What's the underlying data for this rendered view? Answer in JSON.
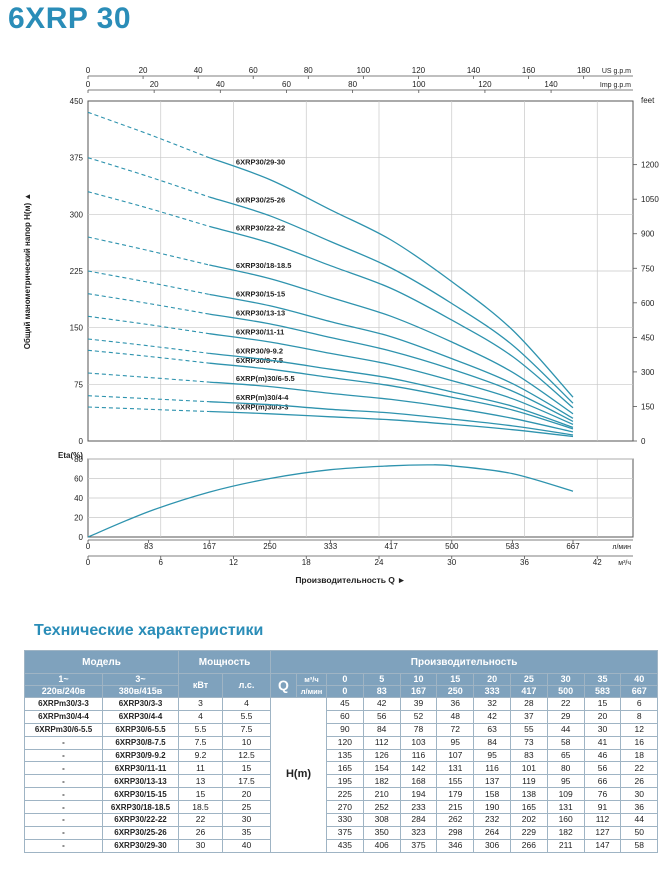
{
  "page_title": "6XRP 30",
  "section_title": "Технические характеристики",
  "colors": {
    "brand": "#2a8db8",
    "curve": "#2e93ae",
    "header": "#7fa2bd",
    "grid": "#c8c8c8"
  },
  "chart_data": [
    {
      "type": "line",
      "title": "",
      "ylabel": "Общий манометрический напор H(м)",
      "ylim": [
        0,
        450
      ],
      "yticks": [
        0,
        75,
        150,
        225,
        300,
        375,
        450
      ],
      "right_axis": {
        "label": "feet",
        "ticks": [
          0,
          150,
          300,
          450,
          600,
          750,
          900,
          1050,
          1200
        ]
      },
      "top_axis_us": {
        "label": "US g.p.m",
        "ticks": [
          0,
          20,
          40,
          60,
          80,
          100,
          120,
          140,
          160,
          180
        ]
      },
      "top_axis_imp": {
        "label": "Imp g.p.m",
        "ticks": [
          0,
          20,
          40,
          60,
          80,
          100,
          120,
          140
        ]
      },
      "xlim": [
        0,
        40
      ],
      "x_unit": "м³/ч",
      "grid": true,
      "x": [
        0,
        5,
        10,
        15,
        20,
        25,
        30,
        35,
        40
      ],
      "dashed_until_x": 10,
      "series": [
        {
          "name": "6XRP(m)30/3-3",
          "values": [
            45,
            42,
            39,
            36,
            32,
            28,
            22,
            15,
            6
          ]
        },
        {
          "name": "6XRP(m)30/4-4",
          "values": [
            60,
            56,
            52,
            48,
            42,
            37,
            29,
            20,
            8
          ]
        },
        {
          "name": "6XRP(m)30/6-5.5",
          "values": [
            90,
            84,
            78,
            72,
            63,
            55,
            44,
            30,
            12
          ]
        },
        {
          "name": "6XRP30/8-7.5",
          "values": [
            120,
            112,
            103,
            95,
            84,
            73,
            58,
            41,
            16
          ]
        },
        {
          "name": "6XRP30/9-9.2",
          "values": [
            135,
            126,
            116,
            107,
            95,
            83,
            65,
            46,
            18
          ]
        },
        {
          "name": "6XRP30/11-11",
          "values": [
            165,
            154,
            142,
            131,
            116,
            101,
            80,
            56,
            22
          ]
        },
        {
          "name": "6XRP30/13-13",
          "values": [
            195,
            182,
            168,
            155,
            137,
            119,
            95,
            66,
            26
          ]
        },
        {
          "name": "6XRP30/15-15",
          "values": [
            225,
            210,
            194,
            179,
            158,
            138,
            109,
            76,
            30
          ]
        },
        {
          "name": "6XRP30/18-18.5",
          "values": [
            270,
            252,
            233,
            215,
            190,
            165,
            131,
            91,
            36
          ]
        },
        {
          "name": "6XRP30/22-22",
          "values": [
            330,
            308,
            284,
            262,
            232,
            202,
            160,
            112,
            44
          ]
        },
        {
          "name": "6XRP30/25-26",
          "values": [
            375,
            350,
            323,
            298,
            264,
            229,
            182,
            127,
            50
          ]
        },
        {
          "name": "6XRP30/29-30",
          "values": [
            435,
            406,
            375,
            346,
            306,
            266,
            211,
            147,
            58
          ]
        }
      ]
    },
    {
      "type": "line",
      "ylabel": "Eta(%)",
      "ylim": [
        0,
        80
      ],
      "yticks": [
        0,
        20,
        40,
        60,
        80
      ],
      "xlabel": "Производительность Q",
      "xlim": [
        0,
        40
      ],
      "grid": true,
      "x_lmin": {
        "label": "л/мин",
        "ticks": [
          "0",
          "83",
          "167",
          "250",
          "333",
          "417",
          "500",
          "583",
          "667"
        ]
      },
      "x_m3h": {
        "label": "м³/ч",
        "ticks": [
          "0",
          "6",
          "12",
          "18",
          "24",
          "30",
          "36",
          "42"
        ]
      },
      "series": [
        {
          "x": [
            0,
            5,
            10,
            15,
            20,
            25,
            28,
            30,
            35,
            40
          ],
          "values": [
            0,
            26,
            46,
            60,
            69,
            73,
            74,
            73,
            65,
            47
          ]
        }
      ]
    }
  ],
  "table": {
    "header": {
      "model": "Модель",
      "power": "Мощность",
      "flow": "Производительность",
      "ph1": "1~",
      "ph1_volt": "220в/240в",
      "ph3": "3~",
      "ph3_volt": "380в/415в",
      "kw": "кВт",
      "hp": "л.с.",
      "q": "Q",
      "unit_m3h": "м³/ч",
      "unit_lmin": "л/мин",
      "flow_m3h": [
        "0",
        "5",
        "10",
        "15",
        "20",
        "25",
        "30",
        "35",
        "40"
      ],
      "flow_lmin": [
        "0",
        "83",
        "167",
        "250",
        "333",
        "417",
        "500",
        "583",
        "667"
      ],
      "h_label": "H(m)"
    },
    "rows": [
      {
        "m1": "6XRPm30/3-3",
        "m3": "6XRP30/3-3",
        "kw": "3",
        "hp": "4",
        "h": [
          "45",
          "42",
          "39",
          "36",
          "32",
          "28",
          "22",
          "15",
          "6"
        ]
      },
      {
        "m1": "6XRPm30/4-4",
        "m3": "6XRP30/4-4",
        "kw": "4",
        "hp": "5.5",
        "h": [
          "60",
          "56",
          "52",
          "48",
          "42",
          "37",
          "29",
          "20",
          "8"
        ]
      },
      {
        "m1": "6XRPm30/6-5.5",
        "m3": "6XRP30/6-5.5",
        "kw": "5.5",
        "hp": "7.5",
        "h": [
          "90",
          "84",
          "78",
          "72",
          "63",
          "55",
          "44",
          "30",
          "12"
        ]
      },
      {
        "m1": "-",
        "m3": "6XRP30/8-7.5",
        "kw": "7.5",
        "hp": "10",
        "h": [
          "120",
          "112",
          "103",
          "95",
          "84",
          "73",
          "58",
          "41",
          "16"
        ]
      },
      {
        "m1": "-",
        "m3": "6XRP30/9-9.2",
        "kw": "9.2",
        "hp": "12.5",
        "h": [
          "135",
          "126",
          "116",
          "107",
          "95",
          "83",
          "65",
          "46",
          "18"
        ]
      },
      {
        "m1": "-",
        "m3": "6XRP30/11-11",
        "kw": "11",
        "hp": "15",
        "h": [
          "165",
          "154",
          "142",
          "131",
          "116",
          "101",
          "80",
          "56",
          "22"
        ]
      },
      {
        "m1": "-",
        "m3": "6XRP30/13-13",
        "kw": "13",
        "hp": "17.5",
        "h": [
          "195",
          "182",
          "168",
          "155",
          "137",
          "119",
          "95",
          "66",
          "26"
        ]
      },
      {
        "m1": "-",
        "m3": "6XRP30/15-15",
        "kw": "15",
        "hp": "20",
        "h": [
          "225",
          "210",
          "194",
          "179",
          "158",
          "138",
          "109",
          "76",
          "30"
        ]
      },
      {
        "m1": "-",
        "m3": "6XRP30/18-18.5",
        "kw": "18.5",
        "hp": "25",
        "h": [
          "270",
          "252",
          "233",
          "215",
          "190",
          "165",
          "131",
          "91",
          "36"
        ]
      },
      {
        "m1": "-",
        "m3": "6XRP30/22-22",
        "kw": "22",
        "hp": "30",
        "h": [
          "330",
          "308",
          "284",
          "262",
          "232",
          "202",
          "160",
          "112",
          "44"
        ]
      },
      {
        "m1": "-",
        "m3": "6XRP30/25-26",
        "kw": "26",
        "hp": "35",
        "h": [
          "375",
          "350",
          "323",
          "298",
          "264",
          "229",
          "182",
          "127",
          "50"
        ]
      },
      {
        "m1": "-",
        "m3": "6XRP30/29-30",
        "kw": "30",
        "hp": "40",
        "h": [
          "435",
          "406",
          "375",
          "346",
          "306",
          "266",
          "211",
          "147",
          "58"
        ]
      }
    ]
  }
}
